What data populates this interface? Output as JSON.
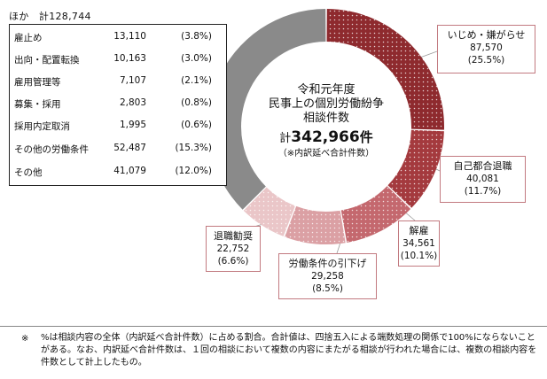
{
  "chart_data": {
    "type": "pie",
    "style": "donut",
    "title_lines": [
      "令和元年度",
      "民事上の個別労働紛争",
      "相談件数"
    ],
    "total_prefix": "計",
    "total_value": "342,966",
    "total_unit": "件",
    "total_note": "（※内訳延べ合計件数）",
    "slices": [
      {
        "label": "いじめ・嫌がらせ",
        "value": 87570,
        "value_text": "87,570",
        "percent": "(25.5%)",
        "color": "#8e2a2e",
        "pattern": "dots"
      },
      {
        "label": "自己都合退職",
        "value": 40081,
        "value_text": "40,081",
        "percent": "(11.7%)",
        "color": "#a43a3e",
        "pattern": "dots"
      },
      {
        "label": "解雇",
        "value": 34561,
        "value_text": "34,561",
        "percent": "(10.1%)",
        "color": "#c4686e",
        "pattern": "dots"
      },
      {
        "label": "労働条件の引下げ",
        "value": 29258,
        "value_text": "29,258",
        "percent": "(8.5%)",
        "color": "#dba0a4",
        "pattern": "dots"
      },
      {
        "label": "退職勧奨",
        "value": 22752,
        "value_text": "22,752",
        "percent": "(6.6%)",
        "color": "#eac6c8",
        "pattern": "dots"
      },
      {
        "label": "ほか",
        "value": 128744,
        "value_text": "128,744",
        "percent": "",
        "color": "#8a8a8a",
        "pattern": "solid"
      }
    ]
  },
  "others": {
    "heading": "ほか　計128,744",
    "rows": [
      {
        "label": "雇止め",
        "value": "13,110",
        "percent": "(3.8%)"
      },
      {
        "label": "出向・配置転換",
        "value": "10,163",
        "percent": "(3.0%)"
      },
      {
        "label": "雇用管理等",
        "value": "7,107",
        "percent": "(2.1%)"
      },
      {
        "label": "募集・採用",
        "value": "2,803",
        "percent": "(0.8%)"
      },
      {
        "label": "採用内定取消",
        "value": "1,995",
        "percent": "(0.6%)"
      },
      {
        "label": "その他の労働条件",
        "value": "52,487",
        "percent": "(15.3%)"
      },
      {
        "label": "その他",
        "value": "41,079",
        "percent": "(12.0%)"
      }
    ]
  },
  "footnote": {
    "mark": "※",
    "text": "%は相談内容の全体（内訳延べ合計件数）に占める割合。合計値は、四捨五入による端数処理の関係で100%にならないことがある。なお、内訳延べ合計件数は、１回の相談において複数の内容にまたがる相談が行われた場合には、複数の相談内容を件数として計上したもの。"
  }
}
